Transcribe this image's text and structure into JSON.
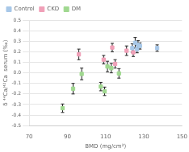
{
  "chart_data": {
    "type": "scatter",
    "xlabel": "BMD (mg/cm²)",
    "ylabel": "δ ⁴⁴Ca/⁴²Ca  serum (‰)",
    "xlim": [
      70,
      150
    ],
    "xticks": [
      70,
      90,
      110,
      130,
      150
    ],
    "ylim": [
      -0.5,
      0.5
    ],
    "yticks": [
      -0.5,
      -0.4,
      -0.3,
      -0.2,
      -0.1,
      {
        "value": 0.0,
        "label": "0.0"
      },
      0.1,
      0.2,
      0.3,
      0.4,
      0.5
    ],
    "grid": "y",
    "legend": "upper left",
    "marker": "square",
    "series": [
      {
        "name": "Control",
        "color": "#a8c8e8",
        "x": [
          125.5,
          127.0,
          128.0,
          124.0,
          126.5,
          137.0
        ],
        "values": [
          0.285,
          0.265,
          0.255,
          0.235,
          0.225,
          0.235
        ],
        "yerr": [
          0.05,
          0.04,
          0.03,
          0.04,
          0.035,
          0.03
        ]
      },
      {
        "name": "CKD",
        "color": "#f0a0b8",
        "x": [
          96.0,
          109.0,
          113.5,
          115.0,
          121.0,
          124.5
        ],
        "values": [
          0.175,
          0.125,
          0.24,
          0.085,
          0.21,
          0.195
        ],
        "yerr": [
          0.05,
          0.04,
          0.04,
          0.04,
          0.045,
          0.04
        ]
      },
      {
        "name": "DM",
        "color": "#a0d890",
        "x": [
          87.5,
          93.0,
          97.5,
          107.5,
          109.5,
          111.0,
          113.0,
          117.0
        ],
        "values": [
          -0.335,
          -0.15,
          -0.01,
          -0.13,
          -0.175,
          0.06,
          0.045,
          -0.005
        ],
        "yerr": [
          0.04,
          0.05,
          0.055,
          0.04,
          0.04,
          0.05,
          0.045,
          0.045
        ]
      }
    ]
  }
}
